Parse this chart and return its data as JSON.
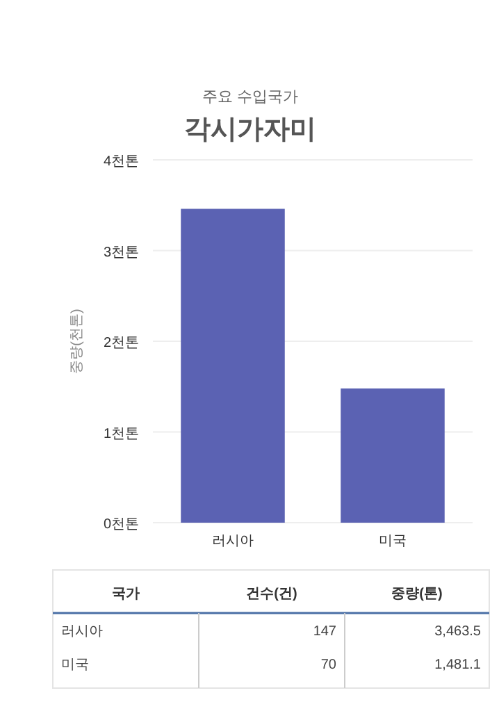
{
  "chart_data": {
    "type": "bar",
    "subtitle": "주요 수입국가",
    "title": "각시가자미",
    "ylabel": "중량(천톤)",
    "categories": [
      "러시아",
      "미국"
    ],
    "values": [
      3.46,
      1.48
    ],
    "color": "#5b62b3",
    "annotations": [
      "국가",
      "건수(건)",
      "중량(톤)",
      "147",
      "3,463.5",
      "70",
      "1,481.1"
    ],
    "ylim": [
      0,
      4
    ],
    "yticks": [
      {
        "value": 0,
        "label": "0천톤"
      },
      {
        "value": 1,
        "label": "1천톤"
      },
      {
        "value": 2,
        "label": "2천톤"
      },
      {
        "value": 3,
        "label": "3천톤"
      },
      {
        "value": 4,
        "label": "4천톤"
      }
    ],
    "grid": "y"
  }
}
